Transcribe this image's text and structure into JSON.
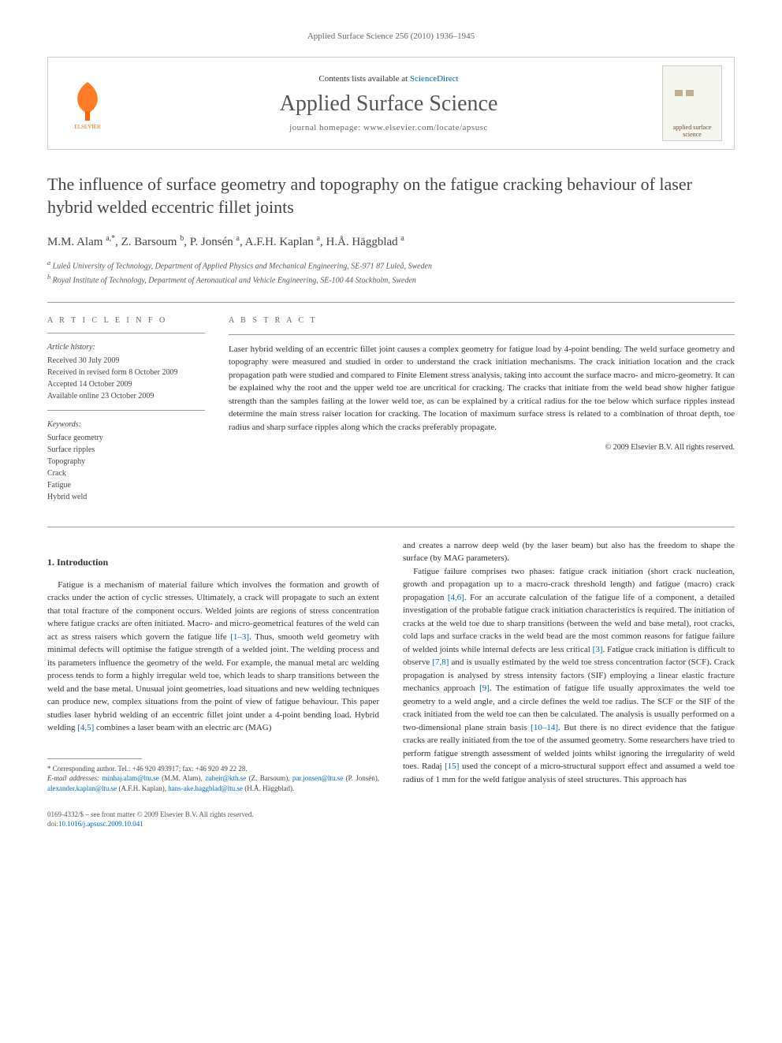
{
  "header": {
    "citation": "Applied Surface Science 256 (2010) 1936–1945"
  },
  "banner": {
    "contents_prefix": "Contents lists available at ",
    "contents_link": "ScienceDirect",
    "journal_name": "Applied Surface Science",
    "homepage_label": "journal homepage: www.elsevier.com/locate/apsusc",
    "cover_text": "applied surface science",
    "elsevier_color": "#ff6600",
    "cover_bg": "#f5f5f0",
    "cover_text_color": "#6a4a2a"
  },
  "title": "The influence of surface geometry and topography on the fatigue cracking behaviour of laser hybrid welded eccentric fillet joints",
  "authors_html": "M.M. Alam <sup>a,*</sup>, Z. Barsoum <sup>b</sup>, P. Jonsén <sup>a</sup>, A.F.H. Kaplan <sup>a</sup>, H.Å. Häggblad <sup>a</sup>",
  "affiliations": {
    "a": "Luleå University of Technology, Department of Applied Physics and Mechanical Engineering, SE-971 87 Luleå, Sweden",
    "b": "Royal Institute of Technology, Department of Aeronautical and Vehicle Engineering, SE-100 44 Stockholm, Sweden"
  },
  "article_info": {
    "heading": "A R T I C L E   I N F O",
    "history_label": "Article history:",
    "history": [
      "Received 30 July 2009",
      "Received in revised form 8 October 2009",
      "Accepted 14 October 2009",
      "Available online 23 October 2009"
    ],
    "keywords_label": "Keywords:",
    "keywords": [
      "Surface geometry",
      "Surface ripples",
      "Topography",
      "Crack",
      "Fatigue",
      "Hybrid weld"
    ]
  },
  "abstract": {
    "heading": "A B S T R A C T",
    "text": "Laser hybrid welding of an eccentric fillet joint causes a complex geometry for fatigue load by 4-point bending. The weld surface geometry and topography were measured and studied in order to understand the crack initiation mechanisms. The crack initiation location and the crack propagation path were studied and compared to Finite Element stress analysis, taking into account the surface macro- and micro-geometry. It can be explained why the root and the upper weld toe are uncritical for cracking. The cracks that initiate from the weld bead show higher fatigue strength than the samples failing at the lower weld toe, as can be explained by a critical radius for the toe below which surface ripples instead determine the main stress raiser location for cracking. The location of maximum surface stress is related to a combination of throat depth, toe radius and sharp surface ripples along which the cracks preferably propagate.",
    "copyright": "© 2009 Elsevier B.V. All rights reserved."
  },
  "body": {
    "section_heading": "1. Introduction",
    "col1_p1": "Fatigue is a mechanism of material failure which involves the formation and growth of cracks under the action of cyclic stresses. Ultimately, a crack will propagate to such an extent that total fracture of the component occurs. Welded joints are regions of stress concentration where fatigue cracks are often initiated. Macro- and micro-geometrical features of the weld can act as stress raisers which govern the fatigue life [1–3]. Thus, smooth weld geometry with minimal defects will optimise the fatigue strength of a welded joint. The welding process and its parameters influence the geometry of the weld. For example, the manual metal arc welding process tends to form a highly irregular weld toe, which leads to sharp transitions between the weld and the base metal. Unusual joint geometries, load situations and new welding techniques can produce new, complex situations from the point of view of fatigue behaviour. This paper studies laser hybrid welding of an eccentric fillet joint under a 4-point bending load. Hybrid welding [4,5] combines a laser beam with an electric arc (MAG)",
    "col2_p1": "and creates a narrow deep weld (by the laser beam) but also has the freedom to shape the surface (by MAG parameters).",
    "col2_p2": "Fatigue failure comprises two phases: fatigue crack initiation (short crack nucleation, growth and propagation up to a macro-crack threshold length) and fatigue (macro) crack propagation [4,6]. For an accurate calculation of the fatigue life of a component, a detailed investigation of the probable fatigue crack initiation characteristics is required. The initiation of cracks at the weld toe due to sharp transitions (between the weld and base metal), root cracks, cold laps and surface cracks in the weld bead are the most common reasons for fatigue failure of welded joints while internal defects are less critical [3]. Fatigue crack initiation is difficult to observe [7,8] and is usually estimated by the weld toe stress concentration factor (SCF). Crack propagation is analysed by stress intensity factors (SIF) employing a linear elastic fracture mechanics approach [9]. The estimation of fatigue life usually approximates the weld toe geometry to a weld angle, and a circle defines the weld toe radius. The SCF or the SIF of the crack initiated from the weld toe can then be calculated. The analysis is usually performed on a two-dimensional plane strain basis [10–14]. But there is no direct evidence that the fatigue cracks are really initiated from the toe of the assumed geometry. Some researchers have tried to perform fatigue strength assessment of welded joints whilst ignoring the irregularity of weld toes. Radaj [15] used the concept of a micro-structural support effect and assumed a weld toe radius of 1 mm for the weld fatigue analysis of steel structures. This approach has",
    "refs": {
      "r1_3": "[1–3]",
      "r4_5": "[4,5]",
      "r4_6": "[4,6]",
      "r3": "[3]",
      "r7_8": "[7,8]",
      "r9": "[9]",
      "r10_14": "[10–14]",
      "r15": "[15]"
    }
  },
  "footnotes": {
    "corresponding": "* Corresponding author. Tel.: +46 920 493917; fax: +46 920 49 22 28.",
    "email_label": "E-mail addresses: ",
    "emails": [
      {
        "addr": "minhaj.alam@ltu.se",
        "who": "(M.M. Alam)"
      },
      {
        "addr": "zuheir@kth.se",
        "who": "(Z. Barsoum)"
      },
      {
        "addr": "par.jonsen@ltu.se",
        "who": "(P. Jonsén)"
      },
      {
        "addr": "alexander.kaplan@ltu.se",
        "who": "(A.F.H. Kaplan)"
      },
      {
        "addr": "hans-ake.haggblad@ltu.se",
        "who": "(H.Å. Häggblad)"
      }
    ]
  },
  "footer": {
    "line1": "0169-4332/$ – see front matter © 2009 Elsevier B.V. All rights reserved.",
    "doi_label": "doi:",
    "doi": "10.1016/j.apsusc.2009.10.041"
  },
  "colors": {
    "link": "#0066cc",
    "text": "#333333",
    "muted": "#666666",
    "rule": "#999999"
  }
}
